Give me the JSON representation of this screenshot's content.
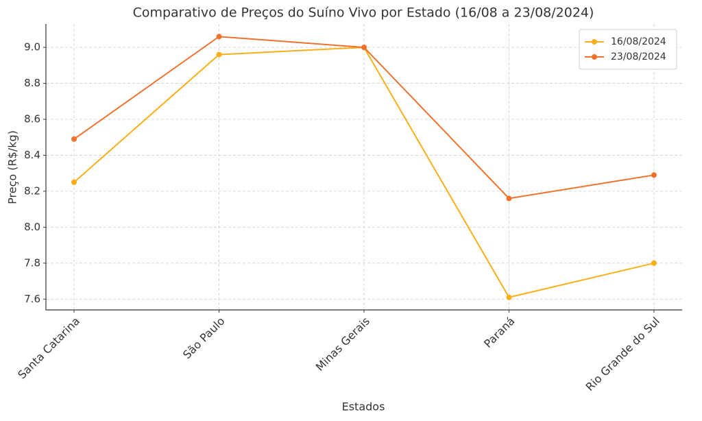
{
  "chart_data": {
    "type": "line",
    "title": "Comparativo de Preços do Suíno Vivo por Estado (16/08 a 23/08/2024)",
    "x_label": "Estados",
    "y_label": "Preço (R$/kg)",
    "categories": [
      "Santa Catarina",
      "São Paulo",
      "Minas Gerais",
      "Paraná",
      "Rio Grande do Sul"
    ],
    "series": [
      {
        "name": "16/08/2024",
        "color": "#fbae17",
        "values": [
          8.25,
          8.96,
          9.0,
          7.61,
          7.8
        ]
      },
      {
        "name": "23/08/2024",
        "color": "#f0712c",
        "values": [
          8.49,
          9.06,
          9.0,
          8.16,
          8.29
        ]
      }
    ],
    "ylim": [
      7.54,
      9.13
    ],
    "yticks": [
      7.6,
      7.8,
      {
        "value": 8,
        "label": "8.0"
      },
      8.2,
      8.4,
      8.6,
      8.8,
      {
        "value": 9,
        "label": "9.0"
      }
    ],
    "grid": true,
    "legend": "upper right"
  }
}
